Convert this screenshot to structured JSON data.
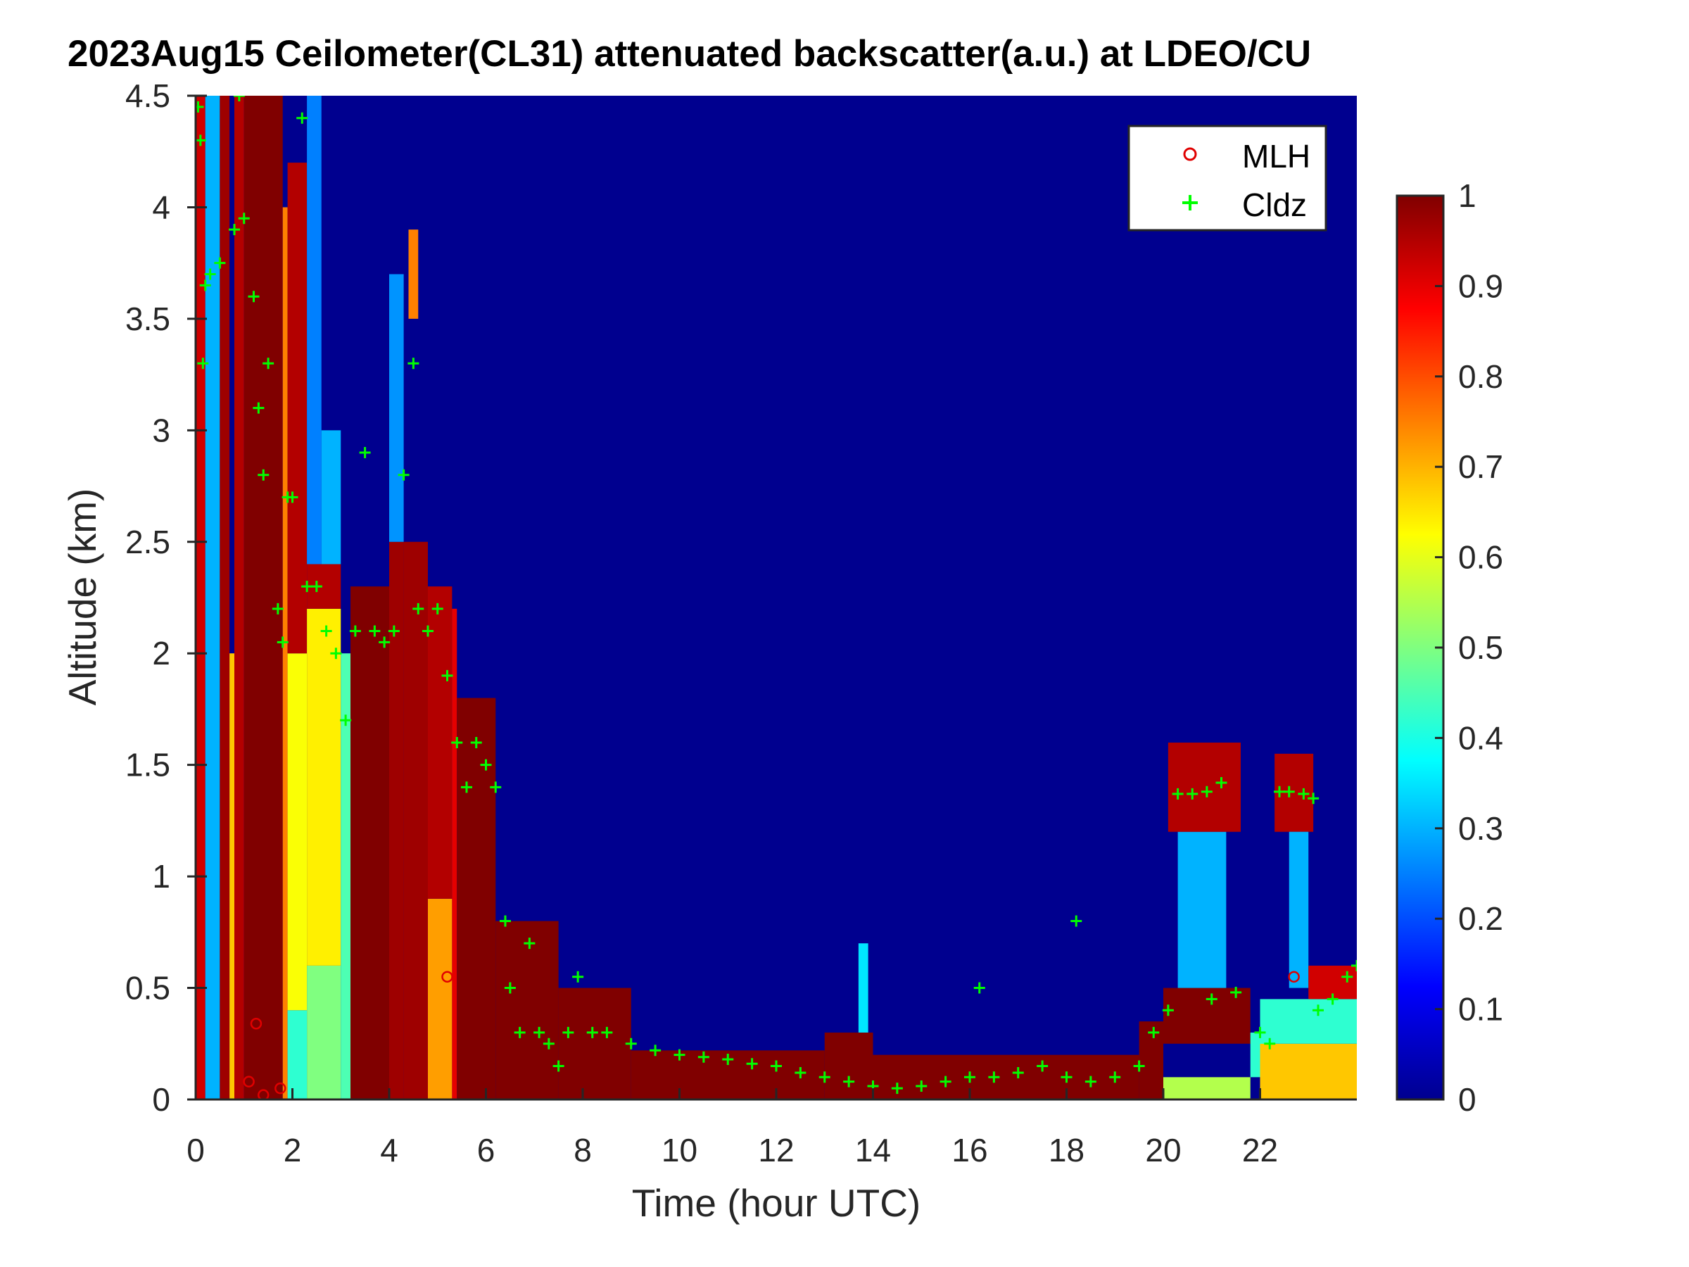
{
  "chart_data": {
    "type": "heatmap",
    "title": "2023Aug15 Ceilometer(CL31) attenuated backscatter(a.u.) at LDEO/CU",
    "xlabel": "Time (hour UTC)",
    "ylabel": "Altitude (km)",
    "xlim": [
      0,
      24
    ],
    "ylim": [
      0,
      4.5
    ],
    "xticks": [
      "0",
      "2",
      "4",
      "6",
      "8",
      "10",
      "12",
      "14",
      "16",
      "18",
      "20",
      "22"
    ],
    "yticks": [
      "0",
      "0.5",
      "1",
      "1.5",
      "2",
      "2.5",
      "3",
      "3.5",
      "4",
      "4.5"
    ],
    "colorbar": {
      "range": [
        0,
        1
      ],
      "ticks": [
        "0",
        "0.1",
        "0.2",
        "0.3",
        "0.4",
        "0.5",
        "0.6",
        "0.7",
        "0.8",
        "0.9",
        "1"
      ],
      "colormap": "jet"
    },
    "legend": {
      "placement": "top-right",
      "entries": [
        {
          "label": "MLH",
          "marker": "circle",
          "color": "#e00000"
        },
        {
          "label": "Cldz",
          "marker": "plus",
          "color": "#00ff00"
        }
      ]
    },
    "background_value": 0,
    "backscatter_regions": [
      [
        0,
        0.2,
        0,
        4.5,
        0.92
      ],
      [
        0.2,
        0.5,
        0,
        4.5,
        0.3
      ],
      [
        0.5,
        0.7,
        0,
        4.5,
        0.97
      ],
      [
        0.7,
        0.8,
        0,
        2.0,
        0.68
      ],
      [
        0.8,
        1.0,
        0,
        4.5,
        0.95
      ],
      [
        1.0,
        1.8,
        0,
        4.5,
        1.0
      ],
      [
        1.8,
        1.9,
        0,
        4.0,
        0.75
      ],
      [
        1.9,
        2.3,
        0,
        0.4,
        0.42
      ],
      [
        1.9,
        2.3,
        0.4,
        2.0,
        0.62
      ],
      [
        1.9,
        2.3,
        2.0,
        4.2,
        0.95
      ],
      [
        2.3,
        3.0,
        0,
        0.6,
        0.5
      ],
      [
        2.3,
        3.0,
        0.6,
        2.2,
        0.64
      ],
      [
        2.3,
        3.0,
        2.2,
        2.4,
        0.95
      ],
      [
        2.3,
        2.6,
        2.4,
        4.5,
        0.25
      ],
      [
        2.6,
        3.0,
        2.4,
        3.0,
        0.3
      ],
      [
        3.0,
        3.2,
        0,
        2.0,
        0.45
      ],
      [
        3.2,
        4.0,
        0,
        2.3,
        1.0
      ],
      [
        4.0,
        4.3,
        0,
        2.5,
        0.97
      ],
      [
        4.0,
        4.3,
        2.5,
        3.7,
        0.27
      ],
      [
        4.3,
        4.8,
        0,
        2.5,
        0.97
      ],
      [
        4.4,
        4.6,
        3.5,
        3.9,
        0.75
      ],
      [
        4.8,
        5.3,
        0,
        0.9,
        0.72
      ],
      [
        4.8,
        5.3,
        0.9,
        2.3,
        0.95
      ],
      [
        5.3,
        5.4,
        0,
        2.2,
        0.9
      ],
      [
        5.4,
        6.2,
        0,
        1.8,
        1.0
      ],
      [
        6.2,
        7.5,
        0,
        0.8,
        1.0
      ],
      [
        7.5,
        9.0,
        0,
        0.5,
        1.0
      ],
      [
        9.0,
        13.0,
        0,
        0.22,
        1.0
      ],
      [
        13.0,
        14.0,
        0,
        0.3,
        1.0
      ],
      [
        13.7,
        13.9,
        0.3,
        0.7,
        0.35
      ],
      [
        14.0,
        19.5,
        0,
        0.2,
        1.0
      ],
      [
        19.5,
        20.0,
        0,
        0.35,
        1.0
      ],
      [
        20.0,
        21.8,
        0,
        0.1,
        0.55
      ],
      [
        20.0,
        21.8,
        0.25,
        0.5,
        1.0
      ],
      [
        20.3,
        21.3,
        0.5,
        1.2,
        0.3
      ],
      [
        20.1,
        21.6,
        1.2,
        1.6,
        0.95
      ],
      [
        21.8,
        22.3,
        0.1,
        0.3,
        0.42
      ],
      [
        22.3,
        23.1,
        1.2,
        1.55,
        0.95
      ],
      [
        22.6,
        23.0,
        0.5,
        1.2,
        0.3
      ],
      [
        22.0,
        24.0,
        0,
        0.25,
        0.68
      ],
      [
        22.0,
        24.0,
        0.25,
        0.45,
        0.42
      ],
      [
        23.0,
        24.0,
        0.45,
        0.6,
        0.92
      ]
    ],
    "series": [
      {
        "name": "MLH",
        "points": [
          [
            1.1,
            0.08
          ],
          [
            1.25,
            0.34
          ],
          [
            1.4,
            0.02
          ],
          [
            1.75,
            0.05
          ],
          [
            5.2,
            0.55
          ],
          [
            22.7,
            0.55
          ]
        ]
      },
      {
        "name": "Cldz",
        "points": [
          [
            0.05,
            4.45
          ],
          [
            0.1,
            4.3
          ],
          [
            0.15,
            3.3
          ],
          [
            0.2,
            3.65
          ],
          [
            0.3,
            3.7
          ],
          [
            0.5,
            3.75
          ],
          [
            0.8,
            3.9
          ],
          [
            0.9,
            4.5
          ],
          [
            1.0,
            3.95
          ],
          [
            1.2,
            3.6
          ],
          [
            1.3,
            3.1
          ],
          [
            1.4,
            2.8
          ],
          [
            1.5,
            3.3
          ],
          [
            1.7,
            2.2
          ],
          [
            1.8,
            2.05
          ],
          [
            1.9,
            2.7
          ],
          [
            2.0,
            2.7
          ],
          [
            2.2,
            4.4
          ],
          [
            2.3,
            2.3
          ],
          [
            2.5,
            2.3
          ],
          [
            2.7,
            2.1
          ],
          [
            2.9,
            2.0
          ],
          [
            3.1,
            1.7
          ],
          [
            3.3,
            2.1
          ],
          [
            3.5,
            2.9
          ],
          [
            3.7,
            2.1
          ],
          [
            3.9,
            2.05
          ],
          [
            4.1,
            2.1
          ],
          [
            4.3,
            2.8
          ],
          [
            4.5,
            3.3
          ],
          [
            4.6,
            2.2
          ],
          [
            4.8,
            2.1
          ],
          [
            5.0,
            2.2
          ],
          [
            5.2,
            1.9
          ],
          [
            5.4,
            1.6
          ],
          [
            5.6,
            1.4
          ],
          [
            5.8,
            1.6
          ],
          [
            6.0,
            1.5
          ],
          [
            6.2,
            1.4
          ],
          [
            6.4,
            0.8
          ],
          [
            6.5,
            0.5
          ],
          [
            6.7,
            0.3
          ],
          [
            6.9,
            0.7
          ],
          [
            7.1,
            0.3
          ],
          [
            7.3,
            0.25
          ],
          [
            7.5,
            0.15
          ],
          [
            7.7,
            0.3
          ],
          [
            7.9,
            0.55
          ],
          [
            8.2,
            0.3
          ],
          [
            8.5,
            0.3
          ],
          [
            9.0,
            0.25
          ],
          [
            9.5,
            0.22
          ],
          [
            10.0,
            0.2
          ],
          [
            10.5,
            0.19
          ],
          [
            11.0,
            0.18
          ],
          [
            11.5,
            0.16
          ],
          [
            12.0,
            0.15
          ],
          [
            12.5,
            0.12
          ],
          [
            13.0,
            0.1
          ],
          [
            13.5,
            0.08
          ],
          [
            14.0,
            0.06
          ],
          [
            14.5,
            0.05
          ],
          [
            15.0,
            0.06
          ],
          [
            15.5,
            0.08
          ],
          [
            16.0,
            0.1
          ],
          [
            16.2,
            0.5
          ],
          [
            16.5,
            0.1
          ],
          [
            17.0,
            0.12
          ],
          [
            17.5,
            0.15
          ],
          [
            18.0,
            0.1
          ],
          [
            18.2,
            0.8
          ],
          [
            18.5,
            0.08
          ],
          [
            19.0,
            0.1
          ],
          [
            19.5,
            0.15
          ],
          [
            19.8,
            0.3
          ],
          [
            20.1,
            0.4
          ],
          [
            20.3,
            1.37
          ],
          [
            20.6,
            1.37
          ],
          [
            20.9,
            1.38
          ],
          [
            21.2,
            1.42
          ],
          [
            21.0,
            0.45
          ],
          [
            21.5,
            0.48
          ],
          [
            22.0,
            0.3
          ],
          [
            22.2,
            0.25
          ],
          [
            22.4,
            1.38
          ],
          [
            22.6,
            1.38
          ],
          [
            22.9,
            1.37
          ],
          [
            23.1,
            1.35
          ],
          [
            23.2,
            0.4
          ],
          [
            23.5,
            0.45
          ],
          [
            23.8,
            0.55
          ],
          [
            24.0,
            0.6
          ]
        ]
      }
    ]
  }
}
